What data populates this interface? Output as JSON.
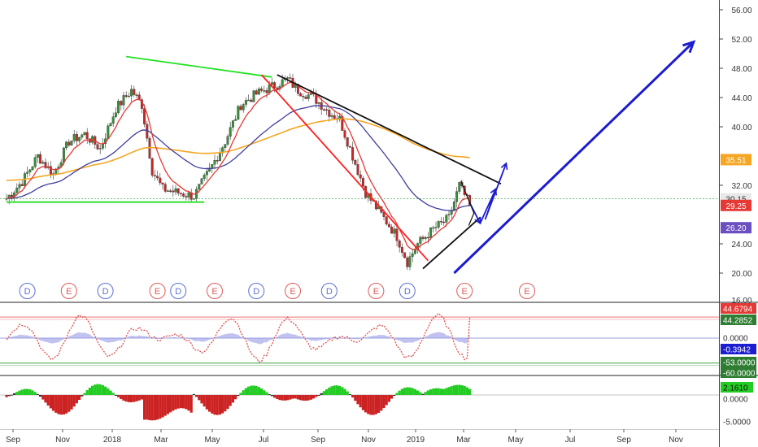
{
  "colors": {
    "background": "#ffffff",
    "candle_up": "#3a8f3a",
    "candle_down": "#c62828",
    "ema_fast": "#e53935",
    "ema_mid": "#3f3fa0",
    "ema_slow": "#f5a623",
    "support": "#22e022",
    "down_trend": "#ff2020",
    "resistance": "#111111",
    "projection": "#1c1cd0",
    "price_line": "#4caf50",
    "osc_line": "#e05050",
    "osc_hist": "#9a9ae8",
    "mom_pos": "#22cc22",
    "mom_neg": "#cc2222",
    "mom_neutral": "#333333",
    "event_div": "#5b6fd6",
    "event_earn": "#e05a5a"
  },
  "chart_data": [
    {
      "type": "candlestick",
      "panel": "price",
      "x_labels": [
        "Sep",
        "Nov",
        "2018",
        "Mar",
        "May",
        "Jul",
        "Sep",
        "Nov",
        "2019",
        "Mar",
        "May",
        "Jul",
        "Sep",
        "Nov"
      ],
      "y_ticks": [
        "56.00",
        "52.00",
        "48.00",
        "44.00",
        "40.00",
        "32.00",
        "24.00",
        "20.00",
        "16.00"
      ],
      "ylim": [
        16,
        57
      ],
      "close_path": [
        [
          0,
          30.2
        ],
        [
          3,
          32.5
        ],
        [
          6,
          36
        ],
        [
          9,
          33.5
        ],
        [
          12,
          38
        ],
        [
          15,
          39
        ],
        [
          18,
          37
        ],
        [
          21,
          42.5
        ],
        [
          24,
          45
        ],
        [
          26,
          43
        ],
        [
          28,
          34
        ],
        [
          30,
          31.5
        ],
        [
          33,
          31
        ],
        [
          36,
          30.5
        ],
        [
          39,
          34
        ],
        [
          42,
          38
        ],
        [
          45,
          43
        ],
        [
          48,
          44.5
        ],
        [
          51,
          45.5
        ],
        [
          54,
          46.5
        ],
        [
          56,
          45
        ],
        [
          59,
          44
        ],
        [
          62,
          42
        ],
        [
          64,
          41
        ],
        [
          66,
          37
        ],
        [
          69,
          31
        ],
        [
          72,
          28
        ],
        [
          75,
          25
        ],
        [
          77,
          21.5
        ],
        [
          79,
          24
        ],
        [
          82,
          26
        ],
        [
          85,
          27.5
        ],
        [
          87,
          32
        ],
        [
          89,
          29.25
        ]
      ],
      "last_close": 29.25,
      "ema_fast_last": 30.15,
      "ema_mid_last": 26.2,
      "ema_slow_last": 35.51,
      "price_labels": [
        {
          "value": 35.51,
          "text": "35.51",
          "color": "#f5a623",
          "text_color": "#ffffff"
        },
        {
          "value": 30.15,
          "text": "30.15",
          "color": "#e8e8e8",
          "text_color": "#333333"
        },
        {
          "value": 29.25,
          "text": "29.25",
          "color": "#e53935",
          "text_color": "#ffffff"
        },
        {
          "value": 26.2,
          "text": "26.20",
          "color": "#6a4fc0",
          "text_color": "#ffffff"
        }
      ],
      "events": [
        {
          "t": 4,
          "label": "D",
          "kind": "dividend"
        },
        {
          "t": 12,
          "label": "E",
          "kind": "earnings"
        },
        {
          "t": 19,
          "label": "D",
          "kind": "dividend"
        },
        {
          "t": 29,
          "label": "E",
          "kind": "earnings"
        },
        {
          "t": 33,
          "label": "D",
          "kind": "dividend"
        },
        {
          "t": 40,
          "label": "E",
          "kind": "earnings"
        },
        {
          "t": 48,
          "label": "D",
          "kind": "dividend"
        },
        {
          "t": 55,
          "label": "E",
          "kind": "earnings"
        },
        {
          "t": 62,
          "label": "D",
          "kind": "dividend"
        },
        {
          "t": 71,
          "label": "E",
          "kind": "earnings"
        },
        {
          "t": 77,
          "label": "D",
          "kind": "dividend"
        },
        {
          "t": 88,
          "label": "E",
          "kind": "earnings"
        },
        {
          "t": 100,
          "label": "E",
          "kind": "earnings"
        }
      ],
      "drawings": [
        {
          "name": "upper-support-line",
          "color": "#22e022",
          "points": [
            [
              23,
              49.6
            ],
            [
              51,
              46.8
            ]
          ]
        },
        {
          "name": "lower-support-line",
          "color": "#22e022",
          "points": [
            [
              0,
              29.7
            ],
            [
              38,
              29.7
            ]
          ]
        },
        {
          "name": "down-trend-line",
          "color": "#ff2020",
          "points": [
            [
              49,
              47.1
            ],
            [
              81,
              21.7
            ]
          ]
        },
        {
          "name": "resistance-line",
          "color": "#111111",
          "points": [
            [
              52,
              47.1
            ],
            [
              95,
              32.2
            ]
          ]
        },
        {
          "name": "lower-channel-line",
          "color": "#111111",
          "points": [
            [
              80,
              20.6
            ],
            [
              91,
              27.6
            ]
          ]
        },
        {
          "name": "projection-arrow",
          "color": "#1c1cd0",
          "points": [
            [
              86,
              20.0
            ],
            [
              132,
              51.6
            ]
          ],
          "arrow": true
        },
        {
          "name": "wave-path",
          "color": "#1c1cd0",
          "points": [
            [
              89,
              29.6
            ],
            [
              91,
              26.8
            ],
            [
              94,
              31.5
            ],
            [
              92,
              27.4
            ],
            [
              96,
              35.0
            ]
          ],
          "dashed": false
        }
      ]
    },
    {
      "type": "line",
      "panel": "oscillator",
      "y_ticks": [
        "44.6794",
        "44.2852",
        "0.0000",
        "-0.3942",
        "-53.0000",
        "-60.0000"
      ],
      "upper_band": 44.6794,
      "lower_band": -53,
      "labels": [
        {
          "value": 44.6794,
          "text": "44.6794",
          "color": "#e53935",
          "text_color": "#ffffff"
        },
        {
          "value": 44.2852,
          "text": "44.2852",
          "color": "#2e7d32",
          "text_color": "#ffffff"
        },
        {
          "value": 0,
          "text": "0.0000",
          "color": "#ffffff",
          "text_color": "#333333"
        },
        {
          "value": -0.3942,
          "text": "-0.3942",
          "color": "#1c1cd0",
          "text_color": "#ffffff"
        },
        {
          "value": -53,
          "text": "-53.0000",
          "color": "#2e7d32",
          "text_color": "#ffffff"
        },
        {
          "value": -60,
          "text": "-60.0000",
          "color": "#2e7d32",
          "text_color": "#ffffff"
        }
      ]
    },
    {
      "type": "bar",
      "panel": "momentum",
      "y_ticks": [
        "2.1610",
        "0.0000",
        "-5.0000"
      ],
      "labels": [
        {
          "value": 2.161,
          "text": "2.1610",
          "color": "#22cc22",
          "text_color": "#111111"
        },
        {
          "value": 0,
          "text": "0.0000",
          "color": "#ffffff",
          "text_color": "#333333"
        }
      ],
      "tick_value": -5
    }
  ]
}
